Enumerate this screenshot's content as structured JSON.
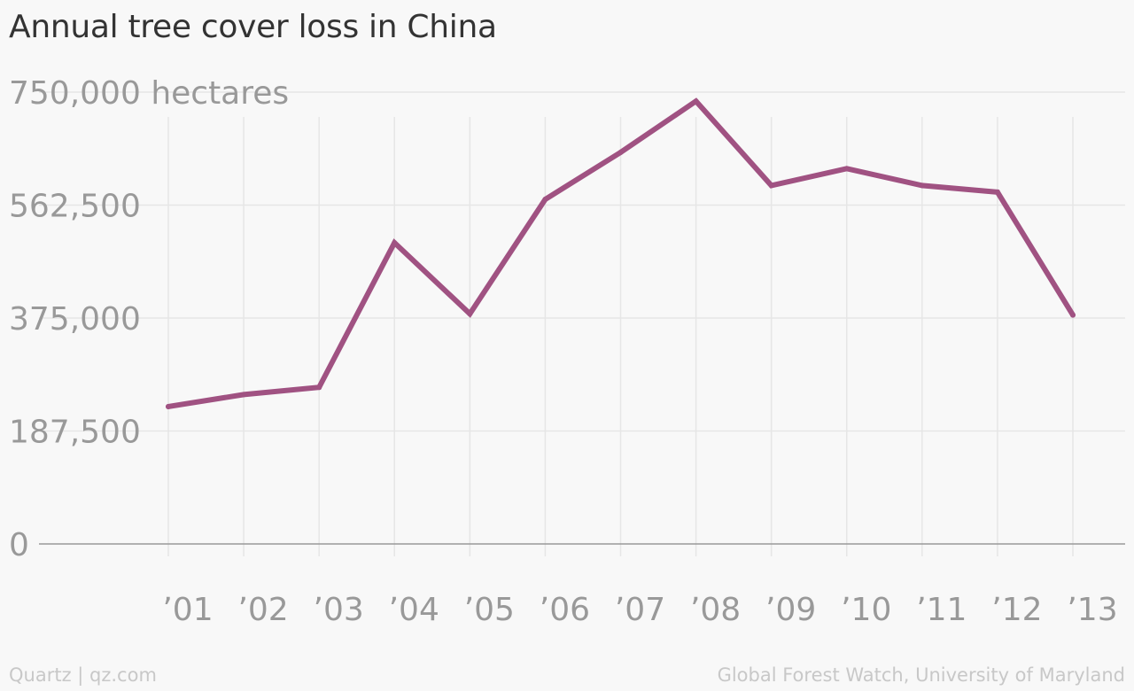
{
  "chart_data": {
    "type": "line",
    "title": "Annual tree cover loss in China",
    "xlabel": "",
    "ylabel": "",
    "categories": [
      "’01",
      "’02",
      "’03",
      "’04",
      "’05",
      "’06",
      "’07",
      "’08",
      "’09",
      "’10",
      "’11",
      "’12",
      "’13"
    ],
    "series": [
      {
        "values": [
          228000,
          248000,
          260000,
          500000,
          382000,
          572000,
          650000,
          735000,
          595000,
          623000,
          595000,
          584000,
          380000
        ]
      }
    ],
    "ylim": [
      0,
      750000
    ],
    "yticks": [
      0,
      187500,
      375000,
      562500,
      750000
    ],
    "ytick_labels": [
      "0",
      "187,500",
      "375,000",
      "562,500",
      "750,000 hectares"
    ],
    "grid": true,
    "line_color": "#a05282",
    "grid_color": "#e6e6e6",
    "baseline_color": "#999999"
  },
  "footer": {
    "source_left": "Quartz | qz.com",
    "source_right": "Global Forest Watch, University of Maryland"
  }
}
